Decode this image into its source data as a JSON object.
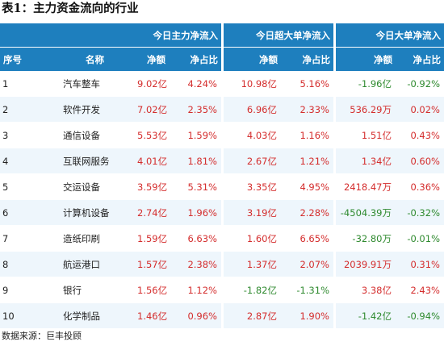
{
  "title": "表1：主力资金流向的行业",
  "headers": {
    "group": [
      "今日主力净流入",
      "今日超大单净流入",
      "今日大单净流入"
    ],
    "index": "序号",
    "name": "名称",
    "sub": [
      "净额",
      "净占比",
      "净额",
      "净占比",
      "净额",
      "净占比"
    ]
  },
  "rows": [
    {
      "idx": "1",
      "name": "汽车整车",
      "v1": "9.02亿",
      "p1": "4.24%",
      "v2": "10.98亿",
      "p2": "5.16%",
      "v3": "-1.96亿",
      "p3": "-0.92%"
    },
    {
      "idx": "2",
      "name": "软件开发",
      "v1": "7.02亿",
      "p1": "2.35%",
      "v2": "6.96亿",
      "p2": "2.33%",
      "v3": "536.29万",
      "p3": "0.02%"
    },
    {
      "idx": "3",
      "name": "通信设备",
      "v1": "5.53亿",
      "p1": "1.59%",
      "v2": "4.03亿",
      "p2": "1.16%",
      "v3": "1.51亿",
      "p3": "0.43%"
    },
    {
      "idx": "4",
      "name": "互联网服务",
      "v1": "4.01亿",
      "p1": "1.81%",
      "v2": "2.67亿",
      "p2": "1.21%",
      "v3": "1.34亿",
      "p3": "0.60%"
    },
    {
      "idx": "5",
      "name": "交运设备",
      "v1": "3.59亿",
      "p1": "5.31%",
      "v2": "3.35亿",
      "p2": "4.95%",
      "v3": "2418.47万",
      "p3": "0.36%"
    },
    {
      "idx": "6",
      "name": "计算机设备",
      "v1": "2.74亿",
      "p1": "1.96%",
      "v2": "3.19亿",
      "p2": "2.28%",
      "v3": "-4504.39万",
      "p3": "-0.32%"
    },
    {
      "idx": "7",
      "name": "造纸印刷",
      "v1": "1.59亿",
      "p1": "6.63%",
      "v2": "1.60亿",
      "p2": "6.65%",
      "v3": "-32.80万",
      "p3": "-0.01%"
    },
    {
      "idx": "8",
      "name": "航运港口",
      "v1": "1.57亿",
      "p1": "2.38%",
      "v2": "1.37亿",
      "p2": "2.07%",
      "v3": "2039.91万",
      "p3": "0.31%"
    },
    {
      "idx": "9",
      "name": "银行",
      "v1": "1.56亿",
      "p1": "1.12%",
      "v2": "-1.82亿",
      "p2": "-1.31%",
      "v3": "3.38亿",
      "p3": "2.43%"
    },
    {
      "idx": "10",
      "name": "化学制品",
      "v1": "1.46亿",
      "p1": "0.96%",
      "v2": "2.87亿",
      "p2": "1.90%",
      "v3": "-1.42亿",
      "p3": "-0.94%"
    }
  ],
  "colors": {
    "header_bg": "#1e7fbe",
    "positive": "#d42d2d",
    "negative": "#2f8a2f",
    "stripe": "#eef6fc"
  },
  "source": "数据来源：巨丰投顾"
}
